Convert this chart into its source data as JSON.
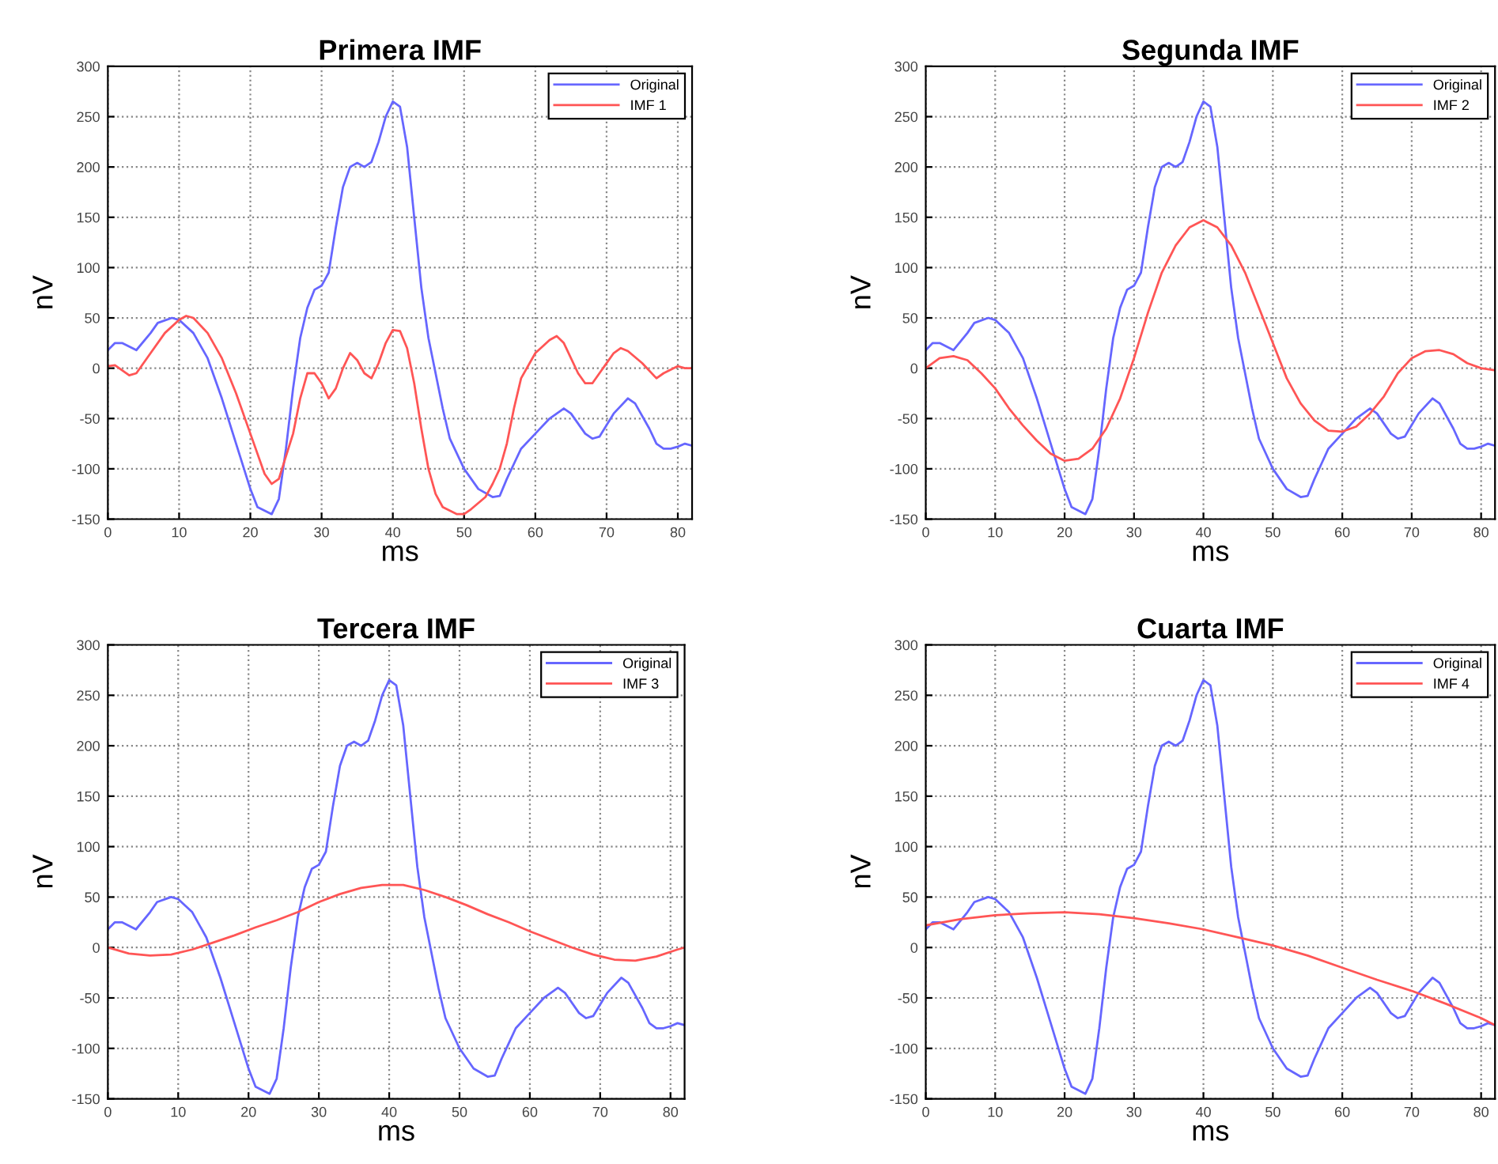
{
  "chart_data": [
    {
      "type": "line",
      "title": "Primera IMF",
      "xlabel": "ms",
      "ylabel": "nV",
      "xlim": [
        0,
        82
      ],
      "ylim": [
        -150,
        300
      ],
      "xticks": [
        0,
        10,
        20,
        30,
        40,
        50,
        60,
        70,
        80
      ],
      "yticks": [
        -150,
        -100,
        -50,
        0,
        50,
        100,
        150,
        200,
        250,
        300
      ],
      "grid": true,
      "legend": "top right",
      "series": [
        {
          "name": "Original",
          "color": "#6666ff",
          "x": [
            0,
            1,
            2,
            4,
            6,
            7,
            9,
            10,
            12,
            14,
            16,
            18,
            20,
            21,
            23,
            24,
            25,
            26,
            27,
            28,
            29,
            30,
            31,
            32,
            33,
            34,
            35,
            36,
            37,
            38,
            39,
            40,
            41,
            42,
            43,
            44,
            45,
            46,
            47,
            48,
            50,
            52,
            54,
            55,
            56,
            57,
            58,
            60,
            62,
            64,
            65,
            67,
            68,
            69,
            71,
            73,
            74,
            76,
            77,
            78,
            79,
            80,
            81,
            82
          ],
          "values": [
            18,
            25,
            25,
            18,
            35,
            45,
            50,
            48,
            35,
            10,
            -30,
            -75,
            -120,
            -138,
            -145,
            -130,
            -80,
            -20,
            30,
            60,
            78,
            82,
            95,
            140,
            180,
            200,
            204,
            200,
            205,
            225,
            250,
            265,
            260,
            220,
            150,
            80,
            30,
            -5,
            -40,
            -70,
            -100,
            -120,
            -128,
            -127,
            -110,
            -95,
            -80,
            -65,
            -50,
            -40,
            -45,
            -65,
            -70,
            -68,
            -45,
            -30,
            -35,
            -60,
            -75,
            -80,
            -80,
            -78,
            -75,
            -77
          ]
        },
        {
          "name": "IMF 1",
          "color": "#ff5555",
          "x": [
            0,
            1,
            3,
            4,
            6,
            8,
            10,
            11,
            12,
            14,
            16,
            18,
            20,
            22,
            23,
            24,
            26,
            27,
            28,
            29,
            30,
            31,
            32,
            33,
            34,
            35,
            36,
            37,
            38,
            39,
            40,
            41,
            42,
            43,
            44,
            45,
            46,
            47,
            49,
            50,
            51,
            53,
            54,
            55,
            56,
            57,
            58,
            60,
            62,
            63,
            64,
            66,
            67,
            68,
            69,
            71,
            72,
            73,
            75,
            77,
            78,
            80,
            81,
            82
          ],
          "values": [
            2,
            3,
            -7,
            -5,
            15,
            35,
            48,
            52,
            50,
            35,
            10,
            -25,
            -65,
            -105,
            -115,
            -110,
            -65,
            -30,
            -5,
            -5,
            -15,
            -30,
            -20,
            0,
            15,
            8,
            -5,
            -10,
            5,
            25,
            38,
            37,
            20,
            -15,
            -60,
            -100,
            -125,
            -138,
            -145,
            -145,
            -140,
            -128,
            -115,
            -100,
            -75,
            -40,
            -10,
            15,
            28,
            32,
            25,
            -5,
            -15,
            -15,
            -5,
            15,
            20,
            17,
            5,
            -10,
            -5,
            2,
            0,
            0
          ]
        }
      ]
    },
    {
      "type": "line",
      "title": "Segunda IMF",
      "xlabel": "ms",
      "ylabel": "nV",
      "xlim": [
        0,
        82
      ],
      "ylim": [
        -150,
        300
      ],
      "xticks": [
        0,
        10,
        20,
        30,
        40,
        50,
        60,
        70,
        80
      ],
      "yticks": [
        -150,
        -100,
        -50,
        0,
        50,
        100,
        150,
        200,
        250,
        300
      ],
      "grid": true,
      "legend": "top right",
      "series": [
        {
          "name": "Original",
          "color": "#6666ff",
          "x": [
            0,
            1,
            2,
            4,
            6,
            7,
            9,
            10,
            12,
            14,
            16,
            18,
            20,
            21,
            23,
            24,
            25,
            26,
            27,
            28,
            29,
            30,
            31,
            32,
            33,
            34,
            35,
            36,
            37,
            38,
            39,
            40,
            41,
            42,
            43,
            44,
            45,
            46,
            47,
            48,
            50,
            52,
            54,
            55,
            56,
            57,
            58,
            60,
            62,
            64,
            65,
            67,
            68,
            69,
            71,
            73,
            74,
            76,
            77,
            78,
            79,
            80,
            81,
            82
          ],
          "values": [
            18,
            25,
            25,
            18,
            35,
            45,
            50,
            48,
            35,
            10,
            -30,
            -75,
            -120,
            -138,
            -145,
            -130,
            -80,
            -20,
            30,
            60,
            78,
            82,
            95,
            140,
            180,
            200,
            204,
            200,
            205,
            225,
            250,
            265,
            260,
            220,
            150,
            80,
            30,
            -5,
            -40,
            -70,
            -100,
            -120,
            -128,
            -127,
            -110,
            -95,
            -80,
            -65,
            -50,
            -40,
            -45,
            -65,
            -70,
            -68,
            -45,
            -30,
            -35,
            -60,
            -75,
            -80,
            -80,
            -78,
            -75,
            -77
          ]
        },
        {
          "name": "IMF 2",
          "color": "#ff5555",
          "x": [
            0,
            2,
            4,
            6,
            8,
            10,
            12,
            14,
            16,
            18,
            20,
            22,
            24,
            26,
            28,
            30,
            32,
            34,
            36,
            38,
            40,
            42,
            44,
            46,
            48,
            50,
            52,
            54,
            56,
            58,
            60,
            62,
            64,
            66,
            68,
            70,
            72,
            74,
            76,
            78,
            80,
            82
          ],
          "values": [
            0,
            10,
            12,
            8,
            -5,
            -20,
            -40,
            -57,
            -72,
            -85,
            -92,
            -90,
            -80,
            -60,
            -30,
            10,
            55,
            95,
            122,
            140,
            147,
            140,
            122,
            95,
            60,
            25,
            -10,
            -35,
            -52,
            -62,
            -63,
            -58,
            -45,
            -28,
            -5,
            10,
            17,
            18,
            14,
            5,
            0,
            -2
          ]
        }
      ]
    },
    {
      "type": "line",
      "title": "Tercera IMF",
      "xlabel": "ms",
      "ylabel": "nV",
      "xlim": [
        0,
        82
      ],
      "ylim": [
        -150,
        300
      ],
      "xticks": [
        0,
        10,
        20,
        30,
        40,
        50,
        60,
        70,
        80
      ],
      "yticks": [
        -150,
        -100,
        -50,
        0,
        50,
        100,
        150,
        200,
        250,
        300
      ],
      "grid": true,
      "legend": "top right",
      "series": [
        {
          "name": "Original",
          "color": "#6666ff",
          "x": [
            0,
            1,
            2,
            4,
            6,
            7,
            9,
            10,
            12,
            14,
            16,
            18,
            20,
            21,
            23,
            24,
            25,
            26,
            27,
            28,
            29,
            30,
            31,
            32,
            33,
            34,
            35,
            36,
            37,
            38,
            39,
            40,
            41,
            42,
            43,
            44,
            45,
            46,
            47,
            48,
            50,
            52,
            54,
            55,
            56,
            57,
            58,
            60,
            62,
            64,
            65,
            67,
            68,
            69,
            71,
            73,
            74,
            76,
            77,
            78,
            79,
            80,
            81,
            82
          ],
          "values": [
            18,
            25,
            25,
            18,
            35,
            45,
            50,
            48,
            35,
            10,
            -30,
            -75,
            -120,
            -138,
            -145,
            -130,
            -80,
            -20,
            30,
            60,
            78,
            82,
            95,
            140,
            180,
            200,
            204,
            200,
            205,
            225,
            250,
            265,
            260,
            220,
            150,
            80,
            30,
            -5,
            -40,
            -70,
            -100,
            -120,
            -128,
            -127,
            -110,
            -95,
            -80,
            -65,
            -50,
            -40,
            -45,
            -65,
            -70,
            -68,
            -45,
            -30,
            -35,
            -60,
            -75,
            -80,
            -80,
            -78,
            -75,
            -77
          ]
        },
        {
          "name": "IMF 3",
          "color": "#ff5555",
          "x": [
            0,
            3,
            6,
            9,
            12,
            15,
            18,
            21,
            24,
            27,
            30,
            33,
            36,
            39,
            42,
            45,
            48,
            51,
            54,
            57,
            60,
            63,
            66,
            69,
            72,
            75,
            78,
            81,
            82
          ],
          "values": [
            0,
            -6,
            -8,
            -7,
            -2,
            5,
            12,
            20,
            27,
            35,
            45,
            53,
            59,
            62,
            62,
            57,
            50,
            42,
            33,
            25,
            16,
            8,
            0,
            -7,
            -12,
            -13,
            -9,
            -2,
            0
          ]
        }
      ]
    },
    {
      "type": "line",
      "title": "Cuarta IMF",
      "xlabel": "ms",
      "ylabel": "nV",
      "xlim": [
        0,
        82
      ],
      "ylim": [
        -150,
        300
      ],
      "xticks": [
        0,
        10,
        20,
        30,
        40,
        50,
        60,
        70,
        80
      ],
      "yticks": [
        -150,
        -100,
        -50,
        0,
        50,
        100,
        150,
        200,
        250,
        300
      ],
      "grid": true,
      "legend": "top right",
      "series": [
        {
          "name": "Original",
          "color": "#6666ff",
          "x": [
            0,
            1,
            2,
            4,
            6,
            7,
            9,
            10,
            12,
            14,
            16,
            18,
            20,
            21,
            23,
            24,
            25,
            26,
            27,
            28,
            29,
            30,
            31,
            32,
            33,
            34,
            35,
            36,
            37,
            38,
            39,
            40,
            41,
            42,
            43,
            44,
            45,
            46,
            47,
            48,
            50,
            52,
            54,
            55,
            56,
            57,
            58,
            60,
            62,
            64,
            65,
            67,
            68,
            69,
            71,
            73,
            74,
            76,
            77,
            78,
            79,
            80,
            81,
            82
          ],
          "values": [
            18,
            25,
            25,
            18,
            35,
            45,
            50,
            48,
            35,
            10,
            -30,
            -75,
            -120,
            -138,
            -145,
            -130,
            -80,
            -20,
            30,
            60,
            78,
            82,
            95,
            140,
            180,
            200,
            204,
            200,
            205,
            225,
            250,
            265,
            260,
            220,
            150,
            80,
            30,
            -5,
            -40,
            -70,
            -100,
            -120,
            -128,
            -127,
            -110,
            -95,
            -80,
            -65,
            -50,
            -40,
            -45,
            -65,
            -70,
            -68,
            -45,
            -30,
            -35,
            -60,
            -75,
            -80,
            -80,
            -78,
            -75,
            -77
          ]
        },
        {
          "name": "IMF 4",
          "color": "#ff5555",
          "x": [
            0,
            5,
            10,
            15,
            20,
            25,
            30,
            35,
            40,
            45,
            50,
            55,
            60,
            65,
            70,
            75,
            80,
            82
          ],
          "values": [
            22,
            28,
            32,
            34,
            35,
            33,
            29,
            24,
            18,
            10,
            2,
            -8,
            -20,
            -32,
            -43,
            -56,
            -70,
            -77
          ]
        }
      ]
    }
  ]
}
